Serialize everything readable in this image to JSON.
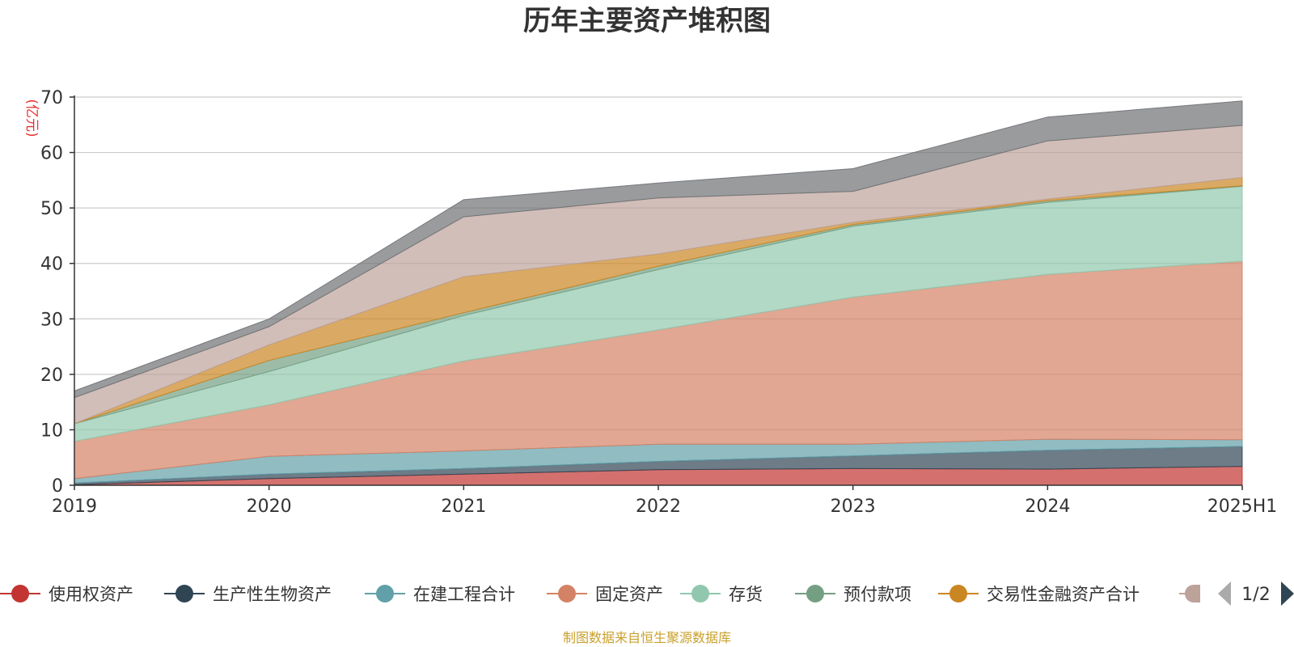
{
  "chart_data": {
    "type": "area",
    "stacked": true,
    "title": "历年主要资产堆积图",
    "unit": "(亿元)",
    "categories": [
      "2019",
      "2020",
      "2021",
      "2022",
      "2023",
      "2024",
      "2025H1"
    ],
    "y_ticks": [
      "0",
      "10",
      "20",
      "30",
      "40",
      "50",
      "60",
      "70"
    ],
    "ylim": [
      0,
      70
    ],
    "grid": true,
    "legend_position": "bottom",
    "series": [
      {
        "name": "使用权资产",
        "color": "#c23531",
        "values": [
          0.1,
          1.2,
          2.0,
          2.8,
          3.0,
          2.9,
          3.4
        ]
      },
      {
        "name": "生产性生物资产",
        "color": "#2f4554",
        "values": [
          0.3,
          0.8,
          1.0,
          1.5,
          2.3,
          3.4,
          3.6
        ]
      },
      {
        "name": "在建工程合计",
        "color": "#61a0a8",
        "values": [
          0.8,
          3.2,
          3.2,
          3.1,
          2.1,
          2.0,
          1.2
        ]
      },
      {
        "name": "固定资产",
        "color": "#d48265",
        "values": [
          6.7,
          9.3,
          16.2,
          20.6,
          26.5,
          29.7,
          32.2
        ]
      },
      {
        "name": "存货",
        "color": "#91c7ae",
        "values": [
          3.2,
          6.0,
          8.2,
          10.9,
          12.8,
          13.0,
          13.5
        ]
      },
      {
        "name": "预付款项",
        "color": "#749f83",
        "values": [
          0.0,
          2.0,
          0.5,
          0.6,
          0.3,
          0.3,
          0.1
        ]
      },
      {
        "name": "交易性金融资产合计",
        "color": "#ca8622",
        "values": [
          0.0,
          2.8,
          6.5,
          2.2,
          0.4,
          0.3,
          1.5
        ]
      },
      {
        "name": "",
        "color": "#bda29a",
        "values": [
          4.7,
          3.3,
          10.8,
          10.1,
          5.6,
          10.5,
          9.4
        ]
      },
      {
        "name": "",
        "color": "#6e7074",
        "values": [
          1.2,
          1.4,
          3.1,
          2.7,
          4.1,
          4.3,
          4.4
        ]
      }
    ]
  },
  "legend": {
    "page": "1/2"
  },
  "source": "制图数据来自恒生聚源数据库"
}
